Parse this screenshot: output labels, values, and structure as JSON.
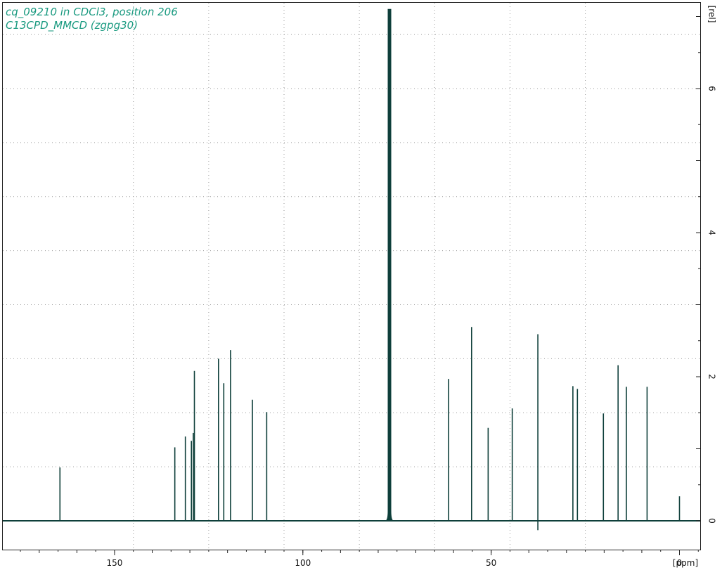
{
  "header": {
    "title_line1": "cq_09210 in CDCl3, position 206",
    "title_line2": "C13CPD_MMCD (zgpg30)"
  },
  "colors": {
    "spectrum": "#0e3f3a",
    "title": "#1a9a80",
    "grid": "#9a9a9a",
    "axis": "#222222"
  },
  "chart_data": {
    "type": "line",
    "subtype": "nmr-stick-spectrum",
    "title": "cq_09210 in CDCl3, position 206",
    "subtitle": "C13CPD_MMCD (zgpg30)",
    "xlabel": "[ppm]",
    "ylabel": "[rel]",
    "xlim": [
      183,
      -5
    ],
    "ylim": [
      -0.15,
      7.1
    ],
    "x_reversed": true,
    "y_axis_side": "right",
    "grid": true,
    "x_ticks": [
      150,
      100,
      50,
      0
    ],
    "x_tick_labels": [
      "150",
      "100",
      "50",
      "0"
    ],
    "y_ticks": [
      0,
      2,
      4,
      6
    ],
    "y_tick_labels": [
      "0",
      "2",
      "4",
      "6"
    ],
    "x_gridlines": [
      145,
      125,
      105,
      85,
      65,
      45,
      25
    ],
    "y_gridlines": [
      0.75,
      1.5,
      2.25,
      3.0,
      3.75,
      4.5,
      5.25,
      6.0,
      6.75
    ],
    "peaks": [
      {
        "ppm": 164.5,
        "height": 0.74
      },
      {
        "ppm": 134.0,
        "height": 1.02
      },
      {
        "ppm": 131.2,
        "height": 1.17
      },
      {
        "ppm": 129.6,
        "height": 1.11
      },
      {
        "ppm": 129.1,
        "height": 1.22
      },
      {
        "ppm": 128.8,
        "height": 2.08
      },
      {
        "ppm": 122.4,
        "height": 2.25
      },
      {
        "ppm": 121.0,
        "height": 1.91
      },
      {
        "ppm": 119.2,
        "height": 2.37
      },
      {
        "ppm": 113.4,
        "height": 1.68
      },
      {
        "ppm": 109.6,
        "height": 1.51
      },
      {
        "ppm": 77.0,
        "height": 7.1
      },
      {
        "ppm": 61.3,
        "height": 1.97
      },
      {
        "ppm": 55.2,
        "height": 2.69
      },
      {
        "ppm": 50.8,
        "height": 1.29
      },
      {
        "ppm": 44.4,
        "height": 1.56
      },
      {
        "ppm": 37.6,
        "height": 2.59
      },
      {
        "ppm": 28.3,
        "height": 1.87
      },
      {
        "ppm": 27.1,
        "height": 1.83
      },
      {
        "ppm": 20.2,
        "height": 1.49
      },
      {
        "ppm": 16.3,
        "height": 2.16
      },
      {
        "ppm": 14.1,
        "height": 1.86
      },
      {
        "ppm": 8.6,
        "height": 1.86
      },
      {
        "ppm": 0.0,
        "height": 0.34
      }
    ],
    "negative_peaks": [
      {
        "ppm": 37.6,
        "height": -0.13
      }
    ]
  }
}
